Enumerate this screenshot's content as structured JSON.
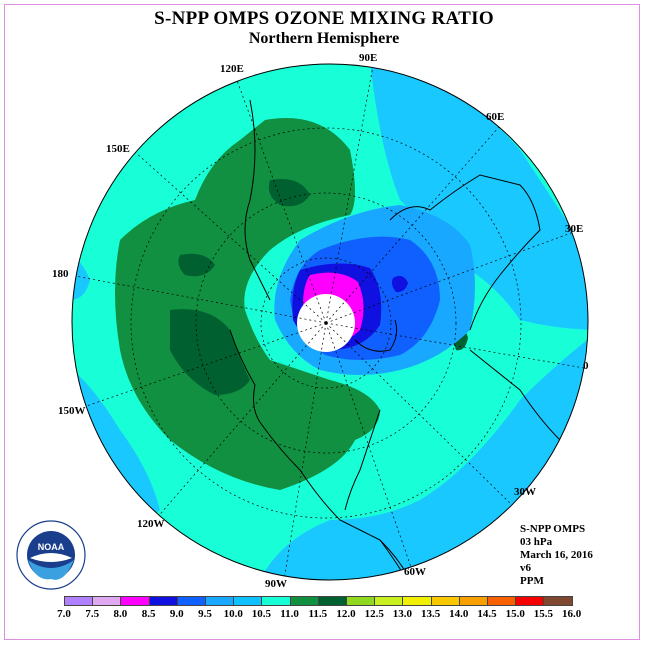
{
  "title": "S-NPP OMPS OZONE MIXING RATIO",
  "subtitle": "Northern Hemisphere",
  "longitude_labels": {
    "lon_90e": "90E",
    "lon_60e": "60E",
    "lon_30e": "30E",
    "lon_0": "0",
    "lon_30w": "30W",
    "lon_60w": "60W",
    "lon_90w": "90W",
    "lon_120w": "120W",
    "lon_150w": "150W",
    "lon_180": "180",
    "lon_150e": "150E",
    "lon_120e": "120E"
  },
  "info": {
    "instrument": "S-NPP OMPS",
    "level": "03 hPa",
    "date": "March 16, 2016",
    "version": "v6",
    "units": "PPM"
  },
  "colorbar": {
    "ticks": [
      "7.0",
      "7.5",
      "8.0",
      "8.5",
      "9.0",
      "9.5",
      "10.0",
      "10.5",
      "11.0",
      "11.5",
      "12.0",
      "12.5",
      "13.0",
      "13.5",
      "14.0",
      "14.5",
      "15.0",
      "15.5",
      "16.0"
    ],
    "colors": [
      "#b080ff",
      "#e0a8f0",
      "#ff00ff",
      "#1010e0",
      "#1060ff",
      "#18a8ff",
      "#10c0ff",
      "#18ffd8",
      "#109040",
      "#006030",
      "#90d820",
      "#c8f020",
      "#f0f000",
      "#f8c800",
      "#f8a000",
      "#f86000",
      "#f80000",
      "#804830"
    ]
  },
  "colors": {
    "background_field": "#18ffd8",
    "ozone_high": "#109040",
    "ozone_low": "#1010e0"
  }
}
